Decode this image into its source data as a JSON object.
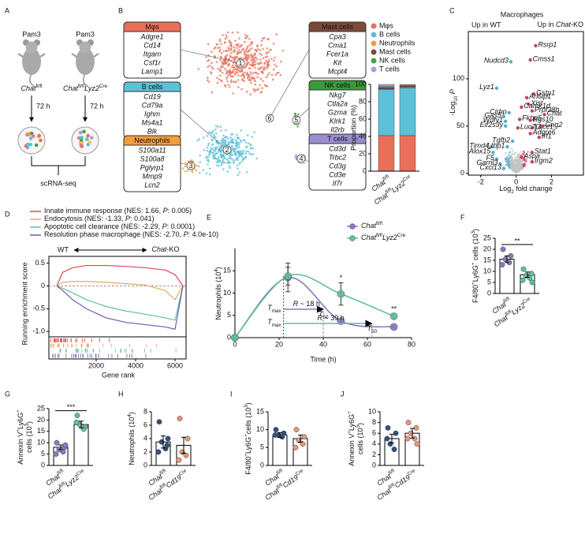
{
  "A": {
    "letter": "A",
    "stimulus": [
      "Pam3",
      "Pam3"
    ],
    "groups": [
      [
        [
          "Chat",
          "i"
        ],
        [
          "fl/fl",
          "sup"
        ]
      ],
      [
        [
          "Chat",
          "i"
        ],
        [
          "fl/fl",
          "sup"
        ],
        [
          "Lyz2",
          "i"
        ],
        [
          "Cre",
          "sup"
        ]
      ]
    ],
    "duration": [
      "72 h",
      "72 h"
    ],
    "method": "scRNA-seq"
  },
  "B": {
    "letter": "B",
    "clusters": [
      {
        "title": "Mφs",
        "color": "#e8705a",
        "genes": [
          "Adgre1",
          "Cd14",
          "Itgam",
          "Csf1r",
          "Lamp1"
        ],
        "id": "1"
      },
      {
        "title": "B cells",
        "color": "#5bc0d8",
        "genes": [
          "Cd19",
          "Cd79a",
          "Ighm",
          "Ms4a1",
          "Blk"
        ],
        "id": "2"
      },
      {
        "title": "Neutrophils",
        "color": "#f39c3c",
        "genes": [
          "S100a11",
          "S100a8",
          "Pglyrp1",
          "Mmp9",
          "Lcn2"
        ],
        "id": "3"
      },
      {
        "title": "Mast cells",
        "color": "#7b4a3a",
        "genes": [
          "Cpa3",
          "Cma1",
          "Fcer1a",
          "Kit",
          "Mcpt4"
        ],
        "id": "6"
      },
      {
        "title": "NK cells",
        "color": "#3a9a3a",
        "genes": [
          "Nkg7",
          "Ctla2a",
          "Gzma",
          "Klrk1",
          "Il2rb"
        ],
        "id": "5"
      },
      {
        "title": "T cells",
        "color": "#9b8cd0",
        "genes": [
          "Cd3d",
          "Trbc2",
          "Cd3g",
          "Cd3e",
          "Il7r"
        ],
        "id": "4"
      }
    ],
    "proportion": {
      "ylabel": "Proportion (%)",
      "ylim": [
        0,
        100
      ],
      "yticks": [
        0,
        20,
        40,
        60,
        80,
        100
      ],
      "categories": [
        [
          [
            "Chat",
            "i"
          ],
          [
            "fl/fl",
            "sup"
          ]
        ],
        [
          [
            "Chat",
            "i"
          ],
          [
            "fl/fl",
            "sup"
          ],
          [
            "Lyz2",
            "i"
          ],
          [
            "Cre",
            "sup"
          ]
        ]
      ],
      "series": [
        {
          "name": "Mφs",
          "color": "#e8705a",
          "values": [
            41,
            41
          ]
        },
        {
          "name": "B cells",
          "color": "#5bc0d8",
          "values": [
            53,
            55
          ]
        },
        {
          "name": "Neutrophils",
          "color": "#f39c3c",
          "values": [
            1,
            1
          ]
        },
        {
          "name": "Mast cells",
          "color": "#7b4a3a",
          "values": [
            1,
            1
          ]
        },
        {
          "name": "NK cells",
          "color": "#4aa04a",
          "values": [
            1.5,
            1
          ]
        },
        {
          "name": "T cells",
          "color": "#a99fdb",
          "values": [
            2.5,
            1
          ]
        }
      ]
    }
  },
  "C": {
    "letter": "C",
    "title": "Macrophages",
    "left": "Up in WT",
    "right": [
      [
        "Up in ",
        "n"
      ],
      [
        "Chat",
        "i"
      ],
      [
        "-KO",
        "n"
      ]
    ],
    "xlabel": [
      [
        "Log",
        "n"
      ],
      [
        "2",
        "sub"
      ],
      [
        " fold change",
        "n"
      ]
    ],
    "ylabel": [
      [
        "-Log",
        "n"
      ],
      [
        "10",
        "sub"
      ],
      [
        " ",
        "n"
      ],
      [
        "P",
        "i"
      ]
    ],
    "xlim": [
      -2.7,
      3.8
    ],
    "ylim": [
      -2,
      150
    ],
    "xticks": [
      -2,
      0,
      2
    ],
    "yticks": [
      0,
      50,
      100
    ],
    "up_color": "#c8415a",
    "down_color": "#5aa9c8",
    "genes": [
      {
        "name": "Rsrp1",
        "x": 1.1,
        "y": 135
      },
      {
        "name": "Cmss1",
        "x": 0.8,
        "y": 120
      },
      {
        "name": "Nudcd3",
        "x": -0.3,
        "y": 118
      },
      {
        "name": "Lyz1",
        "x": -1.1,
        "y": 90
      },
      {
        "name": "Gstp1",
        "x": 1.0,
        "y": 84
      },
      {
        "name": "Arl6ip1",
        "x": 0.6,
        "y": 80
      },
      {
        "name": "Xist",
        "x": 0.7,
        "y": 73
      },
      {
        "name": "Camk1d",
        "x": 0.3,
        "y": 70
      },
      {
        "name": "Prpf38b",
        "x": 0.9,
        "y": 66
      },
      {
        "name": "Cirbp",
        "x": -0.4,
        "y": 64
      },
      {
        "name": "Gas5",
        "x": -0.7,
        "y": 60
      },
      {
        "name": "Chat",
        "x": 1.6,
        "y": 62
      },
      {
        "name": "Fkbp5",
        "x": 0.2,
        "y": 57
      },
      {
        "name": "Rgs10",
        "x": 0.8,
        "y": 56
      },
      {
        "name": "Wdfy1",
        "x": -0.6,
        "y": 55
      },
      {
        "name": "Eif2s3y",
        "x": -0.6,
        "y": 50
      },
      {
        "name": "Lacc1",
        "x": 0.9,
        "y": 48
      },
      {
        "name": "Luc7l3",
        "x": 0.1,
        "y": 48
      },
      {
        "name": "Gng2",
        "x": 1.5,
        "y": 50
      },
      {
        "name": "Adgre6",
        "x": 0.8,
        "y": 42
      },
      {
        "name": "Irf1",
        "x": 1.3,
        "y": 38
      },
      {
        "name": "Tgfb2",
        "x": -0.2,
        "y": 34
      },
      {
        "name": "Timd4",
        "x": -1.4,
        "y": 28
      },
      {
        "name": "Ltbp1",
        "x": -0.5,
        "y": 28
      },
      {
        "name": "Stat1",
        "x": 0.9,
        "y": 22
      },
      {
        "name": "Alox15",
        "x": -1.3,
        "y": 22
      },
      {
        "name": "Aspa",
        "x": 0.3,
        "y": 17
      },
      {
        "name": "F5",
        "x": -1.1,
        "y": 15
      },
      {
        "name": "Irgm2",
        "x": 0.9,
        "y": 12
      },
      {
        "name": "Garnl3",
        "x": -0.9,
        "y": 10
      },
      {
        "name": "Cxcl13",
        "x": -0.7,
        "y": 5
      }
    ]
  },
  "D": {
    "letter": "D",
    "left": "WT",
    "right": [
      [
        "Chat",
        "i"
      ],
      [
        "-KO",
        "n"
      ]
    ],
    "ylabel": "Running enrichment score",
    "xlabel": "Gene rank",
    "xlim": [
      0,
      6400
    ],
    "xticks": [
      2000,
      4000,
      6000
    ],
    "ylim": [
      -1.1,
      0.65
    ],
    "yticks": [
      0.5,
      0,
      -0.5,
      {
        "value": -1,
        "label": "-1.0"
      }
    ],
    "x": [
      0,
      300,
      800,
      1500,
      2500,
      3500,
      4500,
      5500,
      6000,
      6400
    ],
    "series": [
      {
        "name": [
          [
            "Innate immune response (NES: 1.66, ",
            "n"
          ],
          [
            "P",
            "i"
          ],
          [
            ": 0.005)",
            "n"
          ]
        ],
        "color": "#e0434f",
        "values": [
          0,
          0.3,
          0.4,
          0.45,
          0.45,
          0.43,
          0.4,
          0.35,
          0.25,
          0
        ]
      },
      {
        "name": [
          [
            "Endocytosis (NES: -1.33, ",
            "n"
          ],
          [
            "P",
            "i"
          ],
          [
            ": 0.041)",
            "n"
          ]
        ],
        "color": "#e8a860",
        "values": [
          0,
          0.08,
          0.1,
          0.1,
          0.08,
          0.05,
          0.02,
          -0.1,
          -0.3,
          0
        ]
      },
      {
        "name": [
          [
            "Apoptotic cell clearance (NES: -2.29, ",
            "n"
          ],
          [
            "P",
            "i"
          ],
          [
            ": 0.0001)",
            "n"
          ]
        ],
        "color": "#5fbfa8",
        "values": [
          0,
          -0.05,
          -0.15,
          -0.3,
          -0.45,
          -0.55,
          -0.62,
          -0.7,
          -0.75,
          0
        ]
      },
      {
        "name": [
          [
            "Resolution phase macrophage (NES: -2.70, ",
            "n"
          ],
          [
            "P",
            "i"
          ],
          [
            ": 4.0e-10)",
            "n"
          ]
        ],
        "color": "#6a5fa8",
        "values": [
          0,
          -0.1,
          -0.3,
          -0.5,
          -0.7,
          -0.8,
          -0.85,
          -0.9,
          -0.95,
          0
        ]
      }
    ]
  },
  "E": {
    "letter": "E",
    "x": [
      0,
      24,
      48,
      72
    ],
    "xlim": [
      0,
      80
    ],
    "xticks": [
      0,
      20,
      40,
      60,
      80
    ],
    "ylim": [
      0,
      20
    ],
    "yticks": [
      0,
      5,
      10,
      15
    ],
    "xlabel": "Time (h)",
    "ylabel": [
      [
        "Neutrophils (10",
        "n"
      ],
      [
        "4",
        "sup"
      ],
      [
        ")",
        "n"
      ]
    ],
    "tmax_label": [
      [
        "T",
        "i"
      ],
      [
        "max",
        "sub"
      ]
    ],
    "t50_label": [
      [
        "T",
        "i"
      ],
      [
        "50",
        "sub"
      ]
    ],
    "series": [
      {
        "name": [
          [
            "Chat",
            "i"
          ],
          [
            "fl/fl",
            "sup"
          ]
        ],
        "color": "#8a78c4",
        "values": [
          0,
          13.5,
          3.7,
          2.4
        ],
        "errors": [
          0,
          3.2,
          0.3,
          0.3
        ],
        "tmax": 22,
        "t50": 40,
        "r": [
          [
            "R",
            "i"
          ],
          [
            " ~ 18 h",
            "n"
          ]
        ]
      },
      {
        "name": [
          [
            "Chat",
            "i"
          ],
          [
            "fl/fl",
            "sup"
          ],
          [
            "Lyz2",
            "i"
          ],
          [
            "Cre",
            "sup"
          ]
        ],
        "color": "#5fbf9f",
        "values": [
          0,
          13.8,
          9.8,
          4.8
        ],
        "errors": [
          0,
          2,
          2.5,
          0.5
        ],
        "tmax": 22,
        "t50": 62,
        "r": [
          [
            "R",
            "i"
          ],
          [
            " ~ 39 h",
            "n"
          ]
        ]
      }
    ],
    "stars": [
      {
        "text": "*",
        "x": 48
      },
      {
        "text": "**",
        "x": 72
      }
    ]
  },
  "F": {
    "letter": "F",
    "ylabel": [
      [
        [
          "F4/80",
          "n"
        ],
        [
          "+",
          "sup"
        ],
        [
          "Ly6G",
          "n"
        ],
        [
          "+",
          "sup"
        ],
        [
          " cells (10",
          "n"
        ],
        [
          "3",
          "sup"
        ],
        [
          ")",
          "n"
        ]
      ]
    ],
    "ylim": [
      0,
      25
    ],
    "yticks": [
      0,
      5,
      10,
      15,
      20,
      25
    ],
    "categories": [
      [
        [
          "Chat",
          "i"
        ],
        [
          "fl/fl",
          "sup"
        ]
      ],
      [
        [
          "Chat",
          "i"
        ],
        [
          "fl/fl",
          "sup"
        ],
        [
          "Lyz2",
          "i"
        ],
        [
          "Cre",
          "sup"
        ]
      ]
    ],
    "values": [
      15.5,
      8.5
    ],
    "errors": [
      1.5,
      1.2
    ],
    "points": [
      [
        20,
        17,
        15.5,
        14,
        13
      ],
      [
        11,
        9,
        8,
        7,
        6,
        5
      ]
    ],
    "colors": [
      "#8a78c4",
      "#5fbf9f"
    ],
    "sig": "**"
  },
  "G": {
    "letter": "G",
    "ylabel": [
      [
        [
          "Annexin V",
          "n"
        ],
        [
          "+",
          "sup"
        ],
        [
          "Ly6G",
          "n"
        ],
        [
          "+",
          "sup"
        ]
      ],
      [
        [
          "cells (10",
          "n"
        ],
        [
          "3",
          "sup"
        ],
        [
          ")",
          "n"
        ]
      ]
    ],
    "ylim": [
      0,
      25
    ],
    "yticks": [
      0,
      5,
      10,
      15,
      20,
      25
    ],
    "categories": [
      [
        [
          "Chat",
          "i"
        ],
        [
          "fl/fl",
          "sup"
        ]
      ],
      [
        [
          "Chat",
          "i"
        ],
        [
          "fl/fl",
          "sup"
        ],
        [
          "Lyz2",
          "i"
        ],
        [
          "Cre",
          "sup"
        ]
      ]
    ],
    "values": [
      8,
      18
    ],
    "errors": [
      1,
      1.5
    ],
    "points": [
      [
        10,
        8,
        7,
        6,
        5,
        9
      ],
      [
        22,
        17,
        18,
        16,
        19
      ]
    ],
    "colors": [
      "#8a78c4",
      "#5fbf9f"
    ],
    "sig": "***"
  },
  "H": {
    "letter": "H",
    "ylabel": [
      [
        [
          "Neutrophils (10",
          "n"
        ],
        [
          "4",
          "sup"
        ],
        [
          ")",
          "n"
        ]
      ]
    ],
    "ylim": [
      0,
      8
    ],
    "yticks": [
      0,
      2,
      4,
      6,
      8
    ],
    "categories": [
      [
        [
          "Chat",
          "i"
        ],
        [
          "fl/fl",
          "sup"
        ]
      ],
      [
        [
          "Chat",
          "i"
        ],
        [
          "fl/fl",
          "sup"
        ],
        [
          "Cd19",
          "i"
        ],
        [
          "Cre",
          "sup"
        ]
      ]
    ],
    "values": [
      3.5,
      3
    ],
    "errors": [
      0.9,
      1.2
    ],
    "points": [
      [
        6.5,
        3,
        3.5,
        2.5,
        2,
        4
      ],
      [
        7,
        4,
        2,
        1.5,
        0.8
      ]
    ],
    "colors": [
      "#34507f",
      "#e8967a"
    ]
  },
  "I": {
    "letter": "I",
    "ylabel": [
      [
        [
          "F4/80",
          "n"
        ],
        [
          "+",
          "sup"
        ],
        [
          "Ly6G",
          "n"
        ],
        [
          "+",
          "sup"
        ],
        [
          "cells (10",
          "n"
        ],
        [
          "3",
          "sup"
        ],
        [
          ")",
          "n"
        ]
      ]
    ],
    "ylim": [
      0,
      15
    ],
    "yticks": [
      0,
      5,
      10,
      15
    ],
    "categories": [
      [
        [
          "Chat",
          "i"
        ],
        [
          "fl/fl",
          "sup"
        ]
      ],
      [
        [
          "Chat",
          "i"
        ],
        [
          "fl/fl",
          "sup"
        ],
        [
          "Cd19",
          "i"
        ],
        [
          "Cre",
          "sup"
        ]
      ]
    ],
    "values": [
      8.5,
      7.5
    ],
    "errors": [
      0.7,
      1
    ],
    "points": [
      [
        10,
        9,
        8.5,
        8,
        8.5
      ],
      [
        10,
        8,
        7,
        6,
        5
      ]
    ],
    "colors": [
      "#34507f",
      "#e8967a"
    ]
  },
  "J": {
    "letter": "J",
    "ylabel": [
      [
        [
          "Annexin V",
          "n"
        ],
        [
          "+",
          "sup"
        ],
        [
          "Ly6G",
          "n"
        ],
        [
          "+",
          "sup"
        ]
      ],
      [
        [
          "cells (10",
          "n"
        ],
        [
          "3",
          "sup"
        ],
        [
          ")",
          "n"
        ]
      ]
    ],
    "ylim": [
      0,
      10
    ],
    "yticks": [
      0,
      2,
      4,
      6,
      8,
      10
    ],
    "categories": [
      [
        [
          "Chat",
          "i"
        ],
        [
          "fl/fl",
          "sup"
        ]
      ],
      [
        [
          "Chat",
          "i"
        ],
        [
          "fl/fl",
          "sup"
        ],
        [
          "Cd19",
          "i"
        ],
        [
          "Cre",
          "sup"
        ]
      ]
    ],
    "values": [
      5,
      6
    ],
    "errors": [
      0.8,
      0.9
    ],
    "points": [
      [
        7,
        6,
        4,
        3,
        5
      ],
      [
        8,
        7,
        6,
        5,
        5,
        4
      ]
    ],
    "colors": [
      "#34507f",
      "#e8967a"
    ]
  }
}
